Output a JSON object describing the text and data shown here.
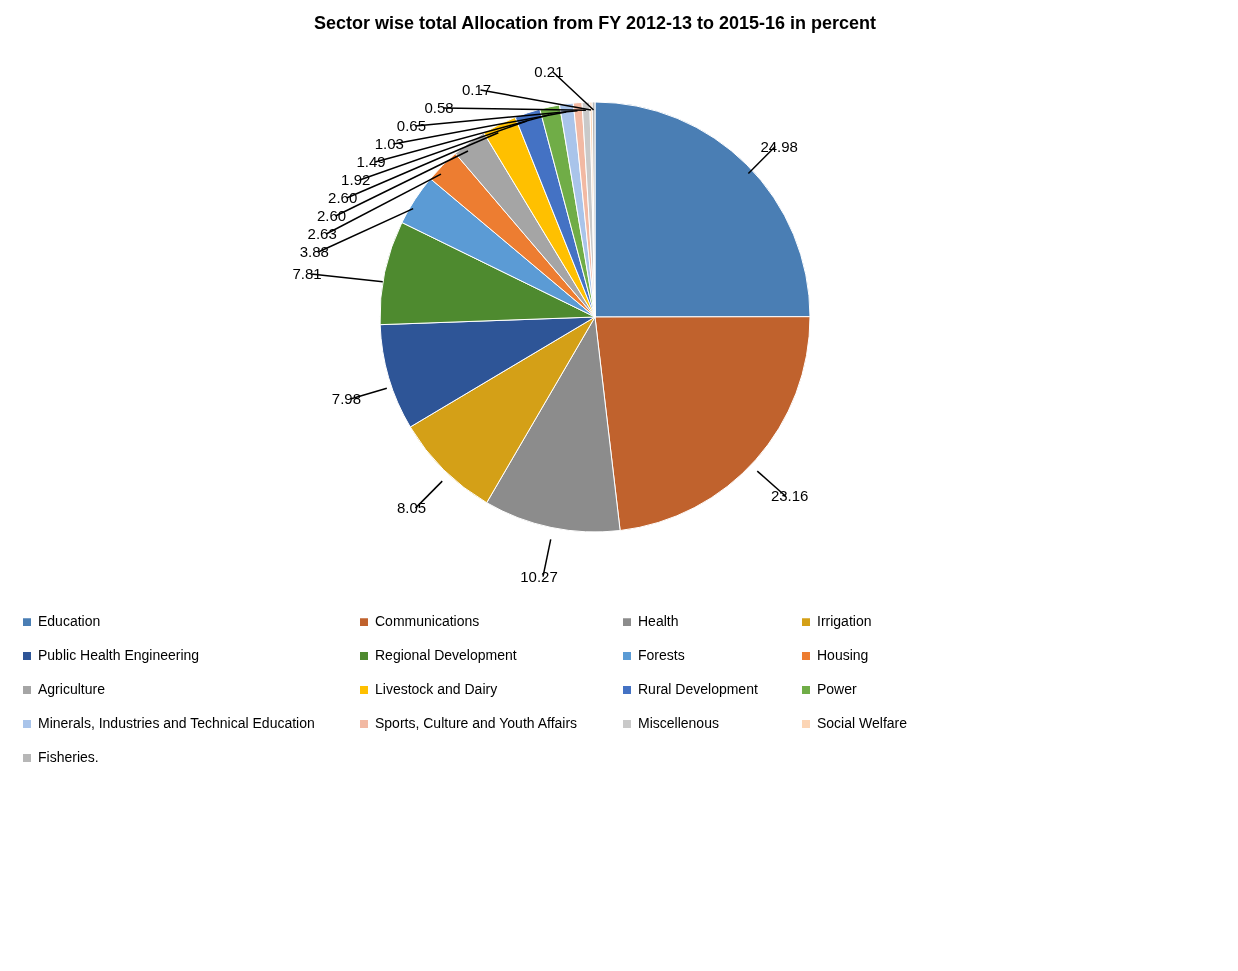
{
  "chart_data": {
    "type": "pie",
    "title": "Sector wise total Allocation from FY 2012-13 to 2015-16 in percent",
    "categories": [
      "Education",
      "Communications",
      "Health",
      "Irrigation",
      "Public Health Engineering",
      "Regional Development",
      "Forests",
      "Housing",
      "Agriculture",
      "Livestock and Dairy",
      "Rural Development",
      "Power",
      "Minerals, Industries and Technical Education",
      "Sports, Culture and Youth Affairs",
      "Miscellenous",
      "Social Welfare",
      "Fisheries."
    ],
    "values": [
      24.98,
      23.16,
      10.27,
      8.05,
      7.98,
      7.81,
      3.88,
      2.63,
      2.6,
      2.6,
      1.92,
      1.49,
      1.03,
      0.65,
      0.58,
      0.17,
      0.21
    ],
    "colors": [
      "#4a7eb4",
      "#c0622d",
      "#8c8c8c",
      "#d4a017",
      "#2e5597",
      "#4e8a2f",
      "#5b9bd5",
      "#ed7d31",
      "#a5a5a5",
      "#ffc000",
      "#4472c4",
      "#70ad47",
      "#a9c4ea",
      "#f2b9a3",
      "#c9c9c9",
      "#fcd5b5",
      "#b7b7b7"
    ],
    "value_labels": [
      "24.98",
      "23.16",
      "10.27",
      "8.05",
      "7.98",
      "7.81",
      "3.88",
      "2.63",
      "2.60",
      "2.60",
      "1.92",
      "1.49",
      "1.03",
      "0.65",
      "0.58",
      "0.17",
      "0.21"
    ],
    "legend": "bottom"
  }
}
